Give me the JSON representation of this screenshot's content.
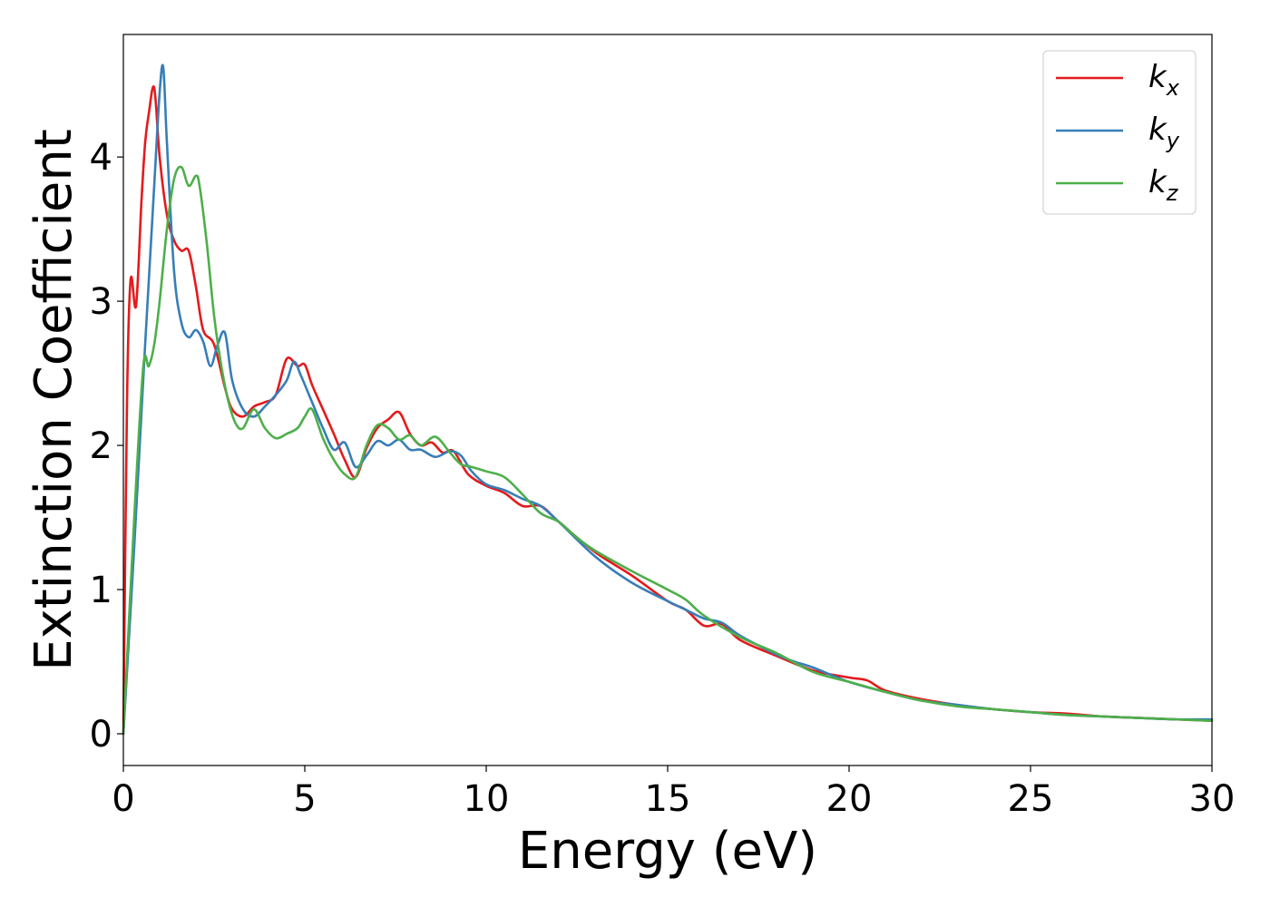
{
  "chart_data": {
    "type": "line",
    "xlabel": "Energy (eV)",
    "ylabel": "Extinction Coefficient",
    "xlim": [
      0,
      30
    ],
    "ylim": [
      -0.22,
      4.85
    ],
    "xticks": [
      0,
      5,
      10,
      15,
      20,
      25,
      30
    ],
    "yticks": [
      0,
      1,
      2,
      3,
      4
    ],
    "grid": false,
    "legend_position": "top-right",
    "series": [
      {
        "name": "k",
        "sub": "x",
        "color": "#e41a1c",
        "x": [
          0,
          0.1,
          0.2,
          0.35,
          0.5,
          0.6,
          0.7,
          0.85,
          1.0,
          1.2,
          1.4,
          1.6,
          1.8,
          2.0,
          2.2,
          2.5,
          2.8,
          3.0,
          3.3,
          3.6,
          3.9,
          4.2,
          4.5,
          4.8,
          5.0,
          5.2,
          5.5,
          5.8,
          6.1,
          6.4,
          6.7,
          7.0,
          7.3,
          7.6,
          7.9,
          8.2,
          8.5,
          8.8,
          9.1,
          9.5,
          10.0,
          10.5,
          11.0,
          11.5,
          12.0,
          13.0,
          14.0,
          15.0,
          15.5,
          16.0,
          16.5,
          17.0,
          18.0,
          19.0,
          20.0,
          20.5,
          21.0,
          22.0,
          23.0,
          24.0,
          25.0,
          26.0,
          27.0,
          28.0,
          29.0,
          30.0
        ],
        "values": [
          0,
          2.3,
          3.15,
          2.97,
          3.7,
          4.1,
          4.3,
          4.48,
          4.0,
          3.6,
          3.42,
          3.35,
          3.35,
          3.1,
          2.8,
          2.7,
          2.4,
          2.25,
          2.2,
          2.27,
          2.3,
          2.35,
          2.6,
          2.55,
          2.56,
          2.42,
          2.25,
          2.08,
          1.9,
          1.78,
          1.98,
          2.12,
          2.18,
          2.23,
          2.08,
          2.0,
          2.02,
          1.95,
          1.96,
          1.8,
          1.72,
          1.67,
          1.58,
          1.58,
          1.47,
          1.26,
          1.1,
          0.92,
          0.86,
          0.75,
          0.76,
          0.65,
          0.54,
          0.44,
          0.39,
          0.37,
          0.3,
          0.24,
          0.2,
          0.17,
          0.15,
          0.14,
          0.12,
          0.11,
          0.1,
          0.09
        ]
      },
      {
        "name": "k",
        "sub": "y",
        "color": "#377eb8",
        "x": [
          0,
          0.3,
          0.6,
          0.85,
          1.0,
          1.1,
          1.2,
          1.4,
          1.6,
          1.8,
          2.0,
          2.2,
          2.4,
          2.6,
          2.8,
          3.0,
          3.3,
          3.6,
          3.9,
          4.2,
          4.5,
          4.7,
          4.9,
          5.2,
          5.5,
          5.8,
          6.1,
          6.4,
          6.7,
          7.0,
          7.3,
          7.6,
          7.9,
          8.2,
          8.6,
          9.0,
          9.3,
          9.6,
          10.0,
          10.5,
          11.0,
          11.5,
          12.0,
          13.0,
          14.0,
          15.0,
          15.5,
          16.0,
          16.5,
          17.0,
          18.0,
          18.5,
          19.0,
          20.0,
          21.0,
          22.0,
          23.0,
          24.0,
          25.0,
          26.0,
          27.0,
          28.0,
          29.0,
          30.0
        ],
        "values": [
          0,
          1.3,
          2.7,
          3.8,
          4.45,
          4.62,
          4.1,
          3.2,
          2.85,
          2.75,
          2.8,
          2.72,
          2.55,
          2.7,
          2.78,
          2.45,
          2.25,
          2.2,
          2.27,
          2.35,
          2.45,
          2.58,
          2.48,
          2.3,
          2.12,
          1.97,
          2.02,
          1.85,
          1.93,
          2.03,
          2.0,
          2.04,
          1.97,
          1.97,
          1.92,
          1.96,
          1.93,
          1.82,
          1.73,
          1.69,
          1.63,
          1.58,
          1.47,
          1.23,
          1.05,
          0.92,
          0.86,
          0.8,
          0.77,
          0.68,
          0.55,
          0.5,
          0.46,
          0.36,
          0.29,
          0.23,
          0.2,
          0.17,
          0.15,
          0.13,
          0.12,
          0.11,
          0.1,
          0.1
        ]
      },
      {
        "name": "k",
        "sub": "z",
        "color": "#4daf4a",
        "x": [
          0,
          0.3,
          0.55,
          0.7,
          0.85,
          1.0,
          1.2,
          1.4,
          1.6,
          1.8,
          2.0,
          2.1,
          2.3,
          2.5,
          2.7,
          2.9,
          3.1,
          3.3,
          3.6,
          3.9,
          4.2,
          4.5,
          4.8,
          5.0,
          5.2,
          5.5,
          5.8,
          6.1,
          6.4,
          6.7,
          7.0,
          7.3,
          7.6,
          7.9,
          8.2,
          8.6,
          9.0,
          9.3,
          9.6,
          10.0,
          10.5,
          11.0,
          11.5,
          12.0,
          12.5,
          13.0,
          14.0,
          15.0,
          15.5,
          16.0,
          17.0,
          18.0,
          19.0,
          20.0,
          21.0,
          22.0,
          23.0,
          24.0,
          25.0,
          26.0,
          27.0,
          28.0,
          29.0,
          30.0
        ],
        "values": [
          0,
          1.5,
          2.55,
          2.55,
          2.7,
          3.0,
          3.5,
          3.85,
          3.93,
          3.8,
          3.87,
          3.8,
          3.4,
          2.9,
          2.55,
          2.3,
          2.15,
          2.12,
          2.25,
          2.12,
          2.05,
          2.08,
          2.12,
          2.2,
          2.25,
          2.05,
          1.9,
          1.8,
          1.78,
          2.0,
          2.14,
          2.12,
          2.04,
          2.07,
          2.0,
          2.06,
          1.95,
          1.87,
          1.85,
          1.82,
          1.78,
          1.66,
          1.53,
          1.47,
          1.36,
          1.27,
          1.13,
          1.0,
          0.93,
          0.82,
          0.67,
          0.56,
          0.43,
          0.36,
          0.29,
          0.23,
          0.19,
          0.17,
          0.15,
          0.13,
          0.12,
          0.11,
          0.1,
          0.09
        ]
      }
    ]
  }
}
